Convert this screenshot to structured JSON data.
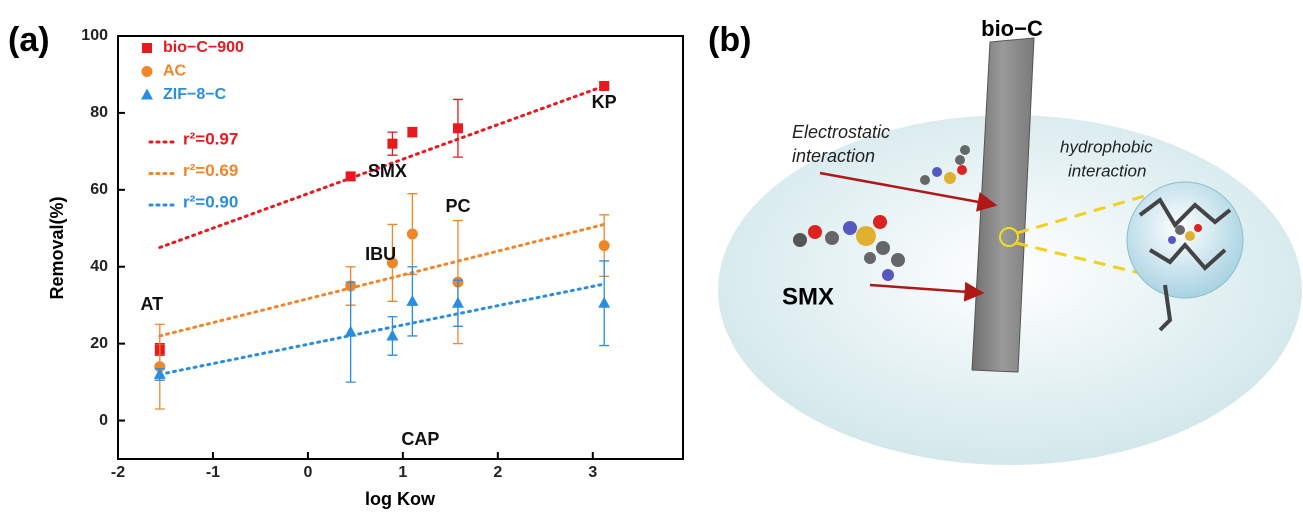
{
  "panel_a_label": "(a)",
  "chart_data": {
    "type": "scatter",
    "xlabel": "log Kow",
    "ylabel": "Removal(%)",
    "xlim": [
      -2,
      3.95
    ],
    "ylim": [
      -10,
      100
    ],
    "xticks": [
      -2,
      -1,
      0,
      1,
      2,
      3
    ],
    "yticks": [
      0,
      20,
      40,
      60,
      80,
      100
    ],
    "x": [
      -1.56,
      0.45,
      0.89,
      1.1,
      1.58,
      3.12
    ],
    "compounds": [
      "AT",
      "IBU",
      "SMX",
      "CAP",
      "PC",
      "KP"
    ],
    "fit_x": [
      -1.56,
      3.12
    ],
    "series": [
      {
        "name": "bio−C−900",
        "color": "#e8191f",
        "marker": "square",
        "values": [
          18.5,
          63.5,
          72,
          75,
          76,
          87
        ],
        "errors": [
          1.5,
          0.8,
          3,
          1.2,
          7.5,
          1
        ],
        "fit": [
          45,
          87
        ],
        "fit_label": "r²=0.97"
      },
      {
        "name": "AC",
        "color": "#f0862a",
        "marker": "circle",
        "values": [
          14,
          35,
          41,
          48.5,
          36,
          45.5
        ],
        "errors": [
          11,
          5,
          10,
          10.5,
          16,
          8
        ],
        "fit": [
          22,
          51
        ],
        "fit_label": "r²=0.69"
      },
      {
        "name": "ZIF−8−C",
        "color": "#2a8de0",
        "marker": "triangle",
        "values": [
          12,
          23,
          22,
          31,
          30.5,
          30.5
        ],
        "errors": [
          1.5,
          13,
          5,
          9,
          6,
          11
        ],
        "fit": [
          12,
          35.5
        ],
        "fit_label": "r²=0.90"
      }
    ]
  },
  "panel_b": {
    "label": "(b)",
    "material": "bio−C",
    "molecule": "SMX",
    "electrostatic": [
      "Electrostatic",
      "interaction"
    ],
    "hydrophobic": [
      "hydrophobic",
      "interaction"
    ]
  }
}
